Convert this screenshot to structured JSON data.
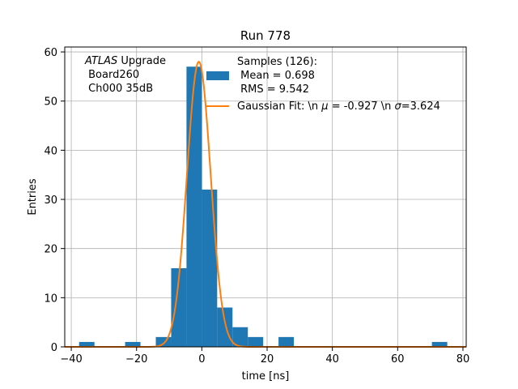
{
  "chart_data": {
    "type": "bar",
    "title": "Run 778",
    "xlabel": "time [ns]",
    "ylabel": "Entries",
    "xlim": [
      -42,
      81
    ],
    "ylim": [
      0,
      61
    ],
    "x_ticks": [
      -40,
      -20,
      0,
      20,
      40,
      60,
      80
    ],
    "y_ticks": [
      0,
      10,
      20,
      30,
      40,
      50,
      60
    ],
    "grid": true,
    "bin_width": 4.7,
    "bins": [
      {
        "x0": -37.6,
        "value": 1
      },
      {
        "x0": -23.5,
        "value": 1
      },
      {
        "x0": -14.1,
        "value": 2
      },
      {
        "x0": -9.4,
        "value": 16
      },
      {
        "x0": -4.7,
        "value": 57
      },
      {
        "x0": 0.0,
        "value": 32
      },
      {
        "x0": 4.7,
        "value": 8
      },
      {
        "x0": 9.4,
        "value": 4
      },
      {
        "x0": 14.1,
        "value": 2
      },
      {
        "x0": 23.5,
        "value": 2
      },
      {
        "x0": 70.5,
        "value": 1
      }
    ],
    "bar_color": "#1f77b4",
    "fit": {
      "mu": -0.927,
      "sigma": 3.624,
      "amplitude": 58,
      "color": "#ff7f0e"
    },
    "annotation": {
      "line1_italic": "ATLAS",
      "line1_rest": " Upgrade",
      "line2": " Board260",
      "line3": " Ch000 35dB"
    },
    "legend": {
      "placement": "top-right",
      "hist_label_lines": [
        "Samples (126):",
        " Mean = 0.698",
        " RMS = 9.542"
      ],
      "fit_label_parts": [
        "Gaussian Fit: \\n ",
        "μ",
        " = -0.927 \\n ",
        "σ",
        "=3.624"
      ]
    }
  }
}
